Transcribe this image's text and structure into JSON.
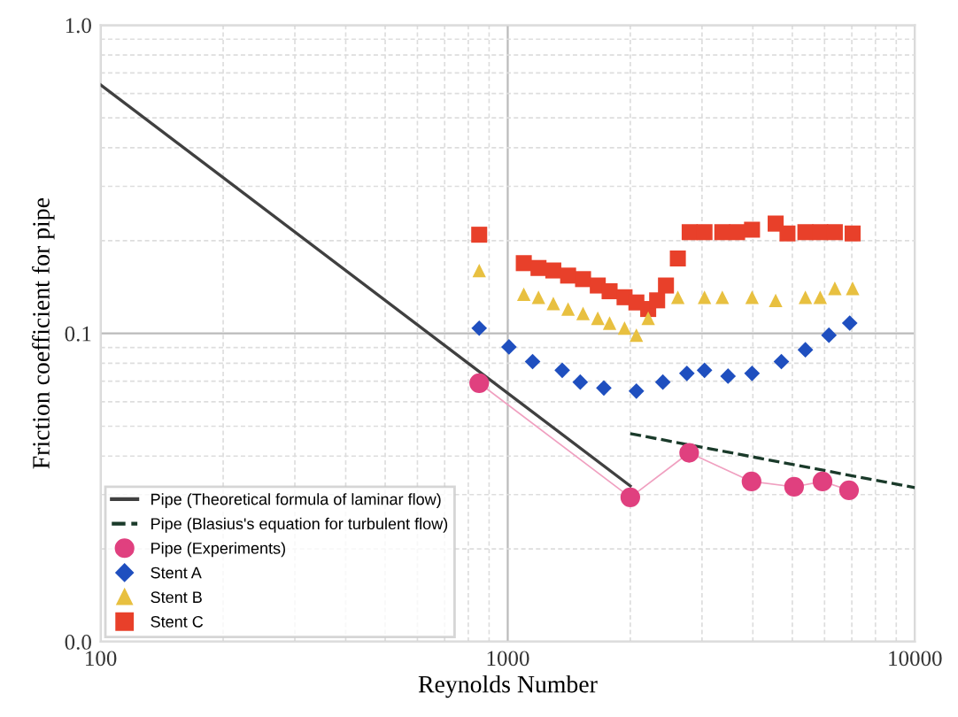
{
  "chart_data": {
    "type": "line",
    "xlabel": "Reynolds Number",
    "ylabel": "Friction coefficient for pipe",
    "log": "xy",
    "xlim": [
      100,
      10000
    ],
    "xticks": [
      100,
      1000,
      10000
    ],
    "ylim": [
      0.01,
      1
    ],
    "yticks": [
      {
        "value": 0.01,
        "label": "0.0"
      },
      0.1,
      {
        "value": 1,
        "label": "1.0"
      }
    ],
    "grid": true,
    "legend": "bottom left",
    "series": [
      {
        "name": "Pipe (Theoretical formula of laminar flow)",
        "line_style": "solid",
        "marker": "none",
        "color": "#404040",
        "x": [
          100,
          2000
        ],
        "values": [
          0.64,
          0.032
        ]
      },
      {
        "name": "Pipe (Blasius's equation for turbulent flow)",
        "line_style": "dashed",
        "marker": "none",
        "color": "#1a3a2a",
        "x": [
          2000,
          10000
        ],
        "values": [
          0.0473,
          0.0316
        ]
      },
      {
        "name": "Pipe (Experiments)",
        "line_style": "solid",
        "marker": "circle",
        "color": "#e0407f",
        "x": [
          851,
          2000,
          2790,
          3970,
          5050,
          5930,
          6890
        ],
        "values": [
          0.069,
          0.0294,
          0.041,
          0.0331,
          0.0318,
          0.0331,
          0.031
        ]
      },
      {
        "name": "Stent A",
        "type": "scatter",
        "marker": "diamond",
        "color": "#1f4fbf",
        "x": [
          851,
          1007,
          1151,
          1361,
          1507,
          1722,
          2070,
          2404,
          2754,
          3043,
          3476,
          3981,
          4700,
          5383,
          6150,
          6918
        ],
        "values": [
          0.104,
          0.0904,
          0.081,
          0.0759,
          0.0695,
          0.0665,
          0.065,
          0.0695,
          0.0742,
          0.0759,
          0.0727,
          0.0742,
          0.081,
          0.0885,
          0.0987,
          0.108
        ]
      },
      {
        "name": "Stent B",
        "type": "scatter",
        "marker": "triangle",
        "color": "#e8c040",
        "x": [
          851,
          1095,
          1190,
          1294,
          1407,
          1531,
          1664,
          1779,
          1936,
          2070,
          2213,
          2617,
          3043,
          3365,
          3981,
          4550,
          5383,
          5853,
          6359,
          7031
        ],
        "values": [
          0.16,
          0.134,
          0.131,
          0.125,
          0.12,
          0.116,
          0.112,
          0.108,
          0.104,
          0.0987,
          0.112,
          0.131,
          0.131,
          0.131,
          0.131,
          0.128,
          0.131,
          0.131,
          0.14,
          0.14
        ]
      },
      {
        "name": "Stent C",
        "type": "scatter",
        "marker": "square",
        "color": "#e8402a",
        "x": [
          851,
          1095,
          1190,
          1294,
          1407,
          1531,
          1664,
          1779,
          1936,
          2070,
          2213,
          2328,
          2447,
          2617,
          2798,
          3043,
          3365,
          3659,
          3981,
          4550,
          4865,
          5383,
          5853,
          6359,
          7031
        ],
        "values": [
          0.209,
          0.169,
          0.163,
          0.16,
          0.154,
          0.15,
          0.143,
          0.137,
          0.131,
          0.126,
          0.12,
          0.128,
          0.143,
          0.175,
          0.213,
          0.213,
          0.213,
          0.213,
          0.217,
          0.227,
          0.211,
          0.213,
          0.213,
          0.213,
          0.211
        ]
      }
    ]
  }
}
